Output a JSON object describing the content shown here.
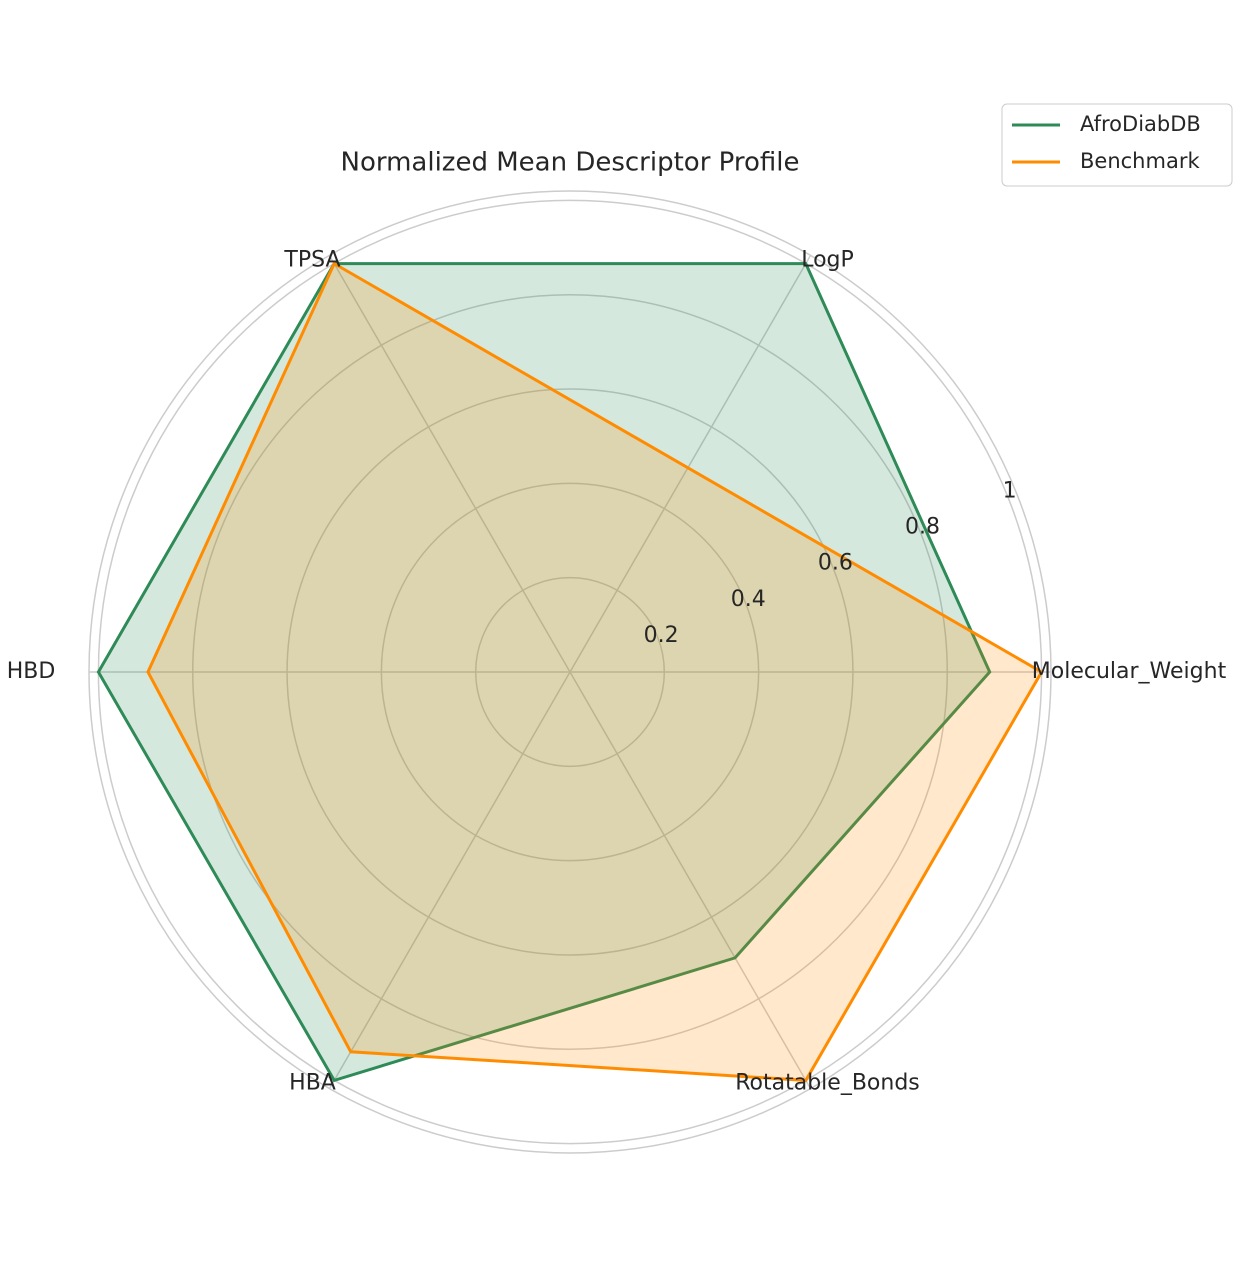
{
  "chart_data": {
    "type": "radar",
    "title": "Normalized Mean Descriptor Profile",
    "categories": [
      "Molecular_Weight",
      "LogP",
      "TPSA",
      "HBD",
      "HBA",
      "Rotatable_Bonds"
    ],
    "series": [
      {
        "name": "AfroDiabDB",
        "color": "#2e8b57",
        "values": [
          0.89,
          1.0,
          1.0,
          1.0,
          1.0,
          0.7
        ]
      },
      {
        "name": "Benchmark",
        "color": "#ff8c00",
        "values": [
          1.0,
          0.5,
          1.0,
          0.895,
          0.93,
          1.0
        ]
      }
    ],
    "ylim": [
      0,
      1.02
    ],
    "yticks": [
      0.2,
      0.4,
      0.6,
      0.8,
      1.0
    ],
    "grid": true,
    "legend": "upper right"
  }
}
